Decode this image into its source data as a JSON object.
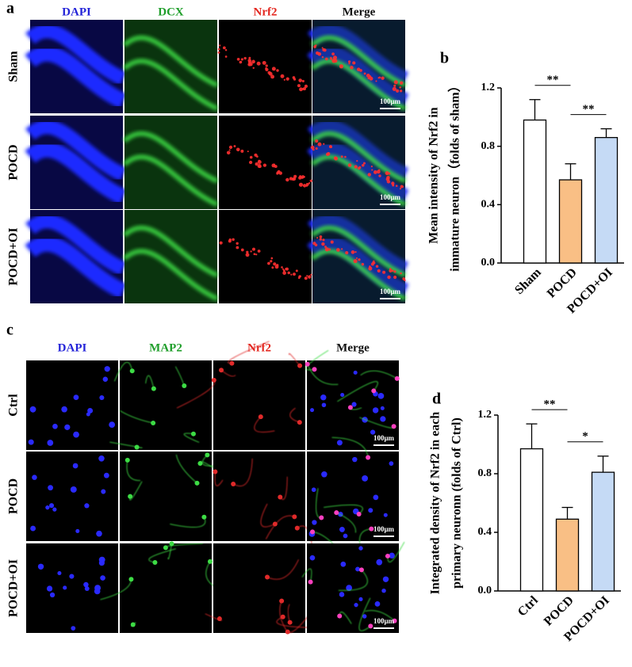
{
  "panel_a": {
    "letter": "a",
    "columns": [
      "DAPI",
      "DCX",
      "Nrf2",
      "Merge"
    ],
    "rows": [
      "Sham",
      "POCD",
      "POCD+OI"
    ],
    "scale_bar": "100μm"
  },
  "panel_c": {
    "letter": "c",
    "columns": [
      "DAPI",
      "MAP2",
      "Nrf2",
      "Merge"
    ],
    "rows": [
      "Ctrl",
      "POCD",
      "POCD+OI"
    ],
    "scale_bar": "100μm"
  },
  "chart_data": [
    {
      "type": "bar",
      "label": "b",
      "ylabel": [
        "Mean intensity of Nrf2 in",
        "immature neuron（folds of sham）"
      ],
      "categories": [
        "Sham",
        "POCD",
        "POCD+OI"
      ],
      "values": [
        0.98,
        0.57,
        0.86
      ],
      "errors": [
        0.14,
        0.11,
        0.06
      ],
      "colors": [
        "#ffffff",
        "#f9bf85",
        "#c5daf5"
      ],
      "ylim": [
        0,
        1.2
      ],
      "yticks": [
        {
          "value": 0,
          "label": "0.0"
        },
        0.4,
        0.8,
        1.2
      ],
      "annotations": [
        "**",
        "**"
      ]
    },
    {
      "type": "bar",
      "label": "d",
      "ylabel": [
        "Integrated density of Nrf2 in each",
        "primary neuronn (folds of Ctrl)"
      ],
      "categories": [
        "Ctrl",
        "POCD",
        "POCD+OI"
      ],
      "values": [
        0.97,
        0.49,
        0.81
      ],
      "errors": [
        0.17,
        0.08,
        0.11
      ],
      "colors": [
        "#ffffff",
        "#f9bf85",
        "#c5daf5"
      ],
      "ylim": [
        0,
        1.2
      ],
      "yticks": [
        {
          "value": 0,
          "label": "0.0"
        },
        0.4,
        0.8,
        1.2
      ],
      "annotations": [
        "**",
        "*"
      ]
    }
  ]
}
